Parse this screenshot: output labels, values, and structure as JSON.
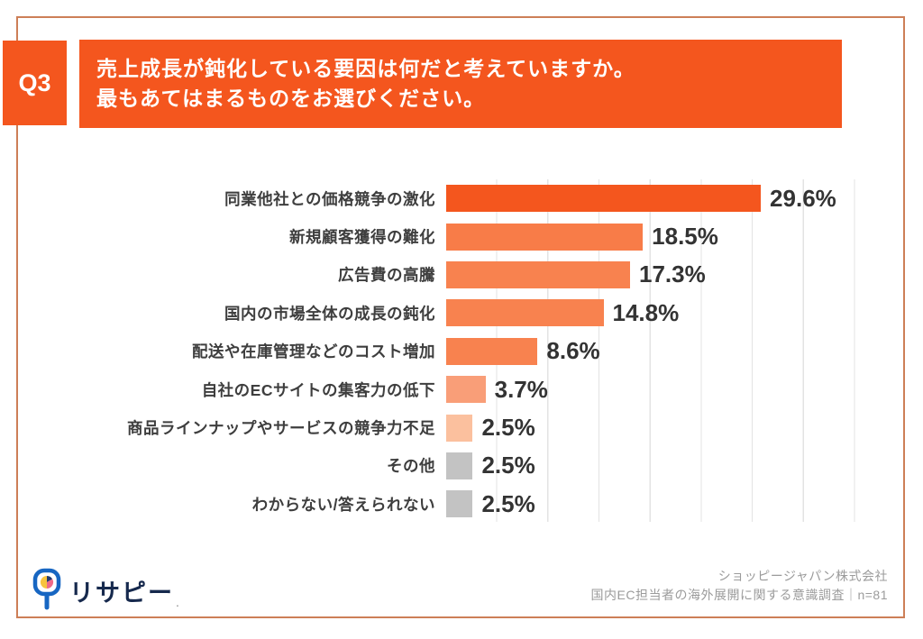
{
  "page": {
    "question_tag": "Q3",
    "title_line1": "売上成長が鈍化している要因は何だと考えていますか。",
    "title_line2": "最もあてはまるものをお選びください。",
    "accent_color": "#f4561e",
    "frame_border_color": "#cd7f57"
  },
  "chart_data": {
    "type": "bar",
    "orientation": "horizontal",
    "title": "売上成長が鈍化している要因",
    "categories": [
      "同業他社との価格競争の激化",
      "新規顧客獲得の難化",
      "広告費の高騰",
      "国内の市場全体の成長の鈍化",
      "配送や在庫管理などのコスト増加",
      "自社のECサイトの集客力の低下",
      "商品ラインナップやサービスの競争力不足",
      "その他",
      "わからない/答えられない"
    ],
    "values": [
      29.6,
      18.5,
      17.3,
      14.8,
      8.6,
      3.7,
      2.5,
      2.5,
      2.5
    ],
    "value_labels": [
      "29.6%",
      "18.5%",
      "17.3%",
      "14.8%",
      "8.6%",
      "3.7%",
      "2.5%",
      "2.5%",
      "2.5%"
    ],
    "bar_colors": [
      "#f4561e",
      "#f87c48",
      "#f8824f",
      "#f8824f",
      "#f8824f",
      "#f99e78",
      "#fbc09e",
      "#c3c3c3",
      "#c3c3c3"
    ],
    "xlim": [
      0,
      42.4
    ],
    "grid": "vertical gridlines approx every 4.8%, light gray",
    "legend": "none",
    "value_label_color": "#333333"
  },
  "footer": {
    "logo_text": "リサピー",
    "logo_mark": ".",
    "source_line1": "ショッピージャパン株式会社",
    "source_line2": "国内EC担当者の海外展開に関する意識調査｜n=81"
  }
}
